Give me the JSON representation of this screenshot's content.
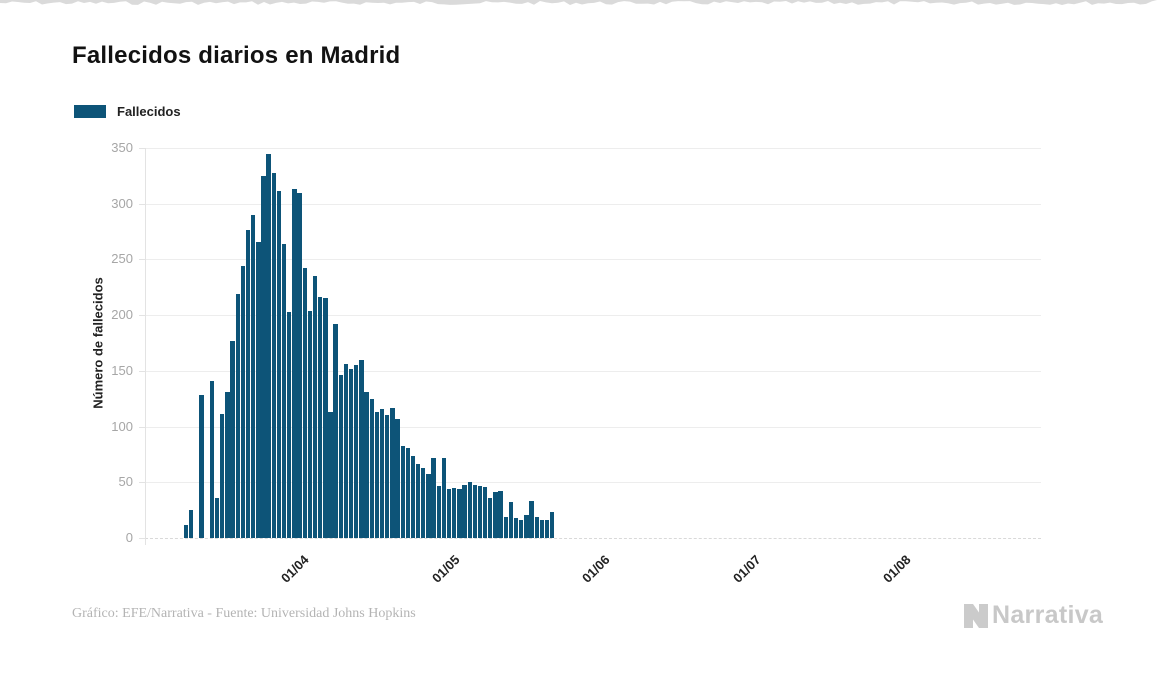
{
  "page": {
    "title": "Fallecidos diarios en Madrid"
  },
  "legend": {
    "label": "Fallecidos",
    "color": "#0d5478"
  },
  "footer": {
    "credit": "Gráfico: EFE/Narrativa - Fuente: Universidad Johns Hopkins"
  },
  "logo": {
    "text": "Narrativa",
    "color": "#c8c8c8",
    "mark": "n-chevron-icon"
  },
  "chart_data": {
    "type": "bar",
    "title": "Fallecidos diarios en Madrid",
    "xlabel": "",
    "ylabel": "Número de fallecidos",
    "series_name": "Fallecidos",
    "bar_color": "#0d5478",
    "grid": "horizontal",
    "legend_position": "top-left",
    "ylim": [
      0,
      350
    ],
    "y_ticks": [
      0,
      50,
      100,
      150,
      200,
      250,
      300,
      350
    ],
    "x_tick_labels": [
      "01/04",
      "01/05",
      "01/06",
      "01/07",
      "01/08"
    ],
    "x_tick_note": "dd/mm month starts; bars are daily values from ~11/03 to ~21/05",
    "values": [
      12,
      25,
      0,
      128,
      0,
      141,
      36,
      111,
      131,
      177,
      219,
      244,
      276,
      290,
      266,
      325,
      345,
      328,
      311,
      264,
      203,
      313,
      310,
      242,
      204,
      235,
      216,
      215,
      113,
      192,
      146,
      156,
      152,
      155,
      160,
      131,
      125,
      113,
      116,
      110,
      117,
      107,
      83,
      81,
      74,
      66,
      63,
      57,
      72,
      47,
      72,
      44,
      45,
      44,
      48,
      50,
      48,
      47,
      46,
      36,
      41,
      42,
      19,
      32,
      18,
      16,
      21,
      33,
      19,
      16,
      16,
      23
    ]
  }
}
